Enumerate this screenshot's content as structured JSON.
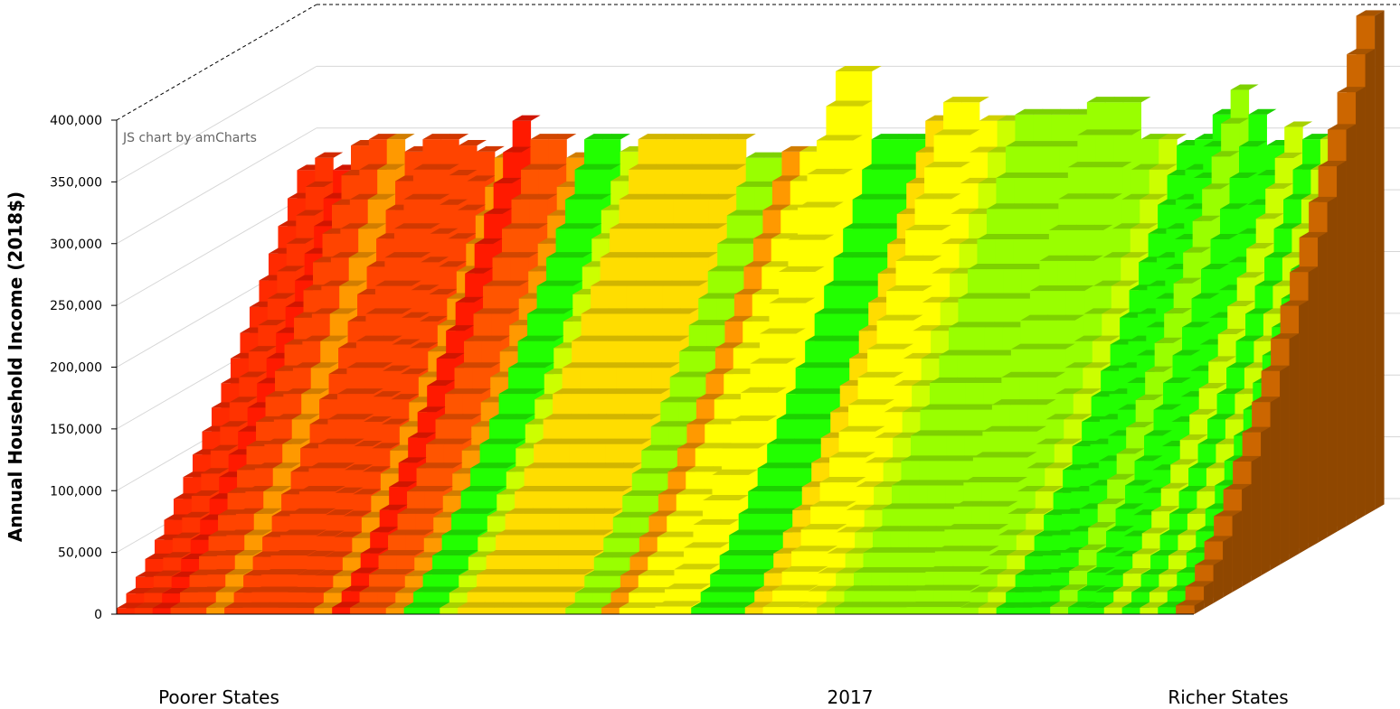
{
  "chart_data": {
    "type": "bar",
    "style": "3d-stacked-columns",
    "ylabel": "Annual Household Income (2018$)",
    "ylim": [
      0,
      400000
    ],
    "yticks": [
      {
        "value": 0,
        "label": "0"
      },
      {
        "value": 50000,
        "label": "50,000"
      },
      {
        "value": 100000,
        "label": "100,000"
      },
      {
        "value": 150000,
        "label": "150,000"
      },
      {
        "value": 200000,
        "label": "200,000"
      },
      {
        "value": 250000,
        "label": "250,000"
      },
      {
        "value": 300000,
        "label": "300,000"
      },
      {
        "value": 350000,
        "label": "350,000"
      },
      {
        "value": 400000,
        "label": "400,000"
      }
    ],
    "x_captions": {
      "left": "Poorer States",
      "center": "2017",
      "right": "Richer States"
    },
    "credit": "JS chart by amCharts",
    "grid": true,
    "color_scale": [
      "#ff1a00",
      "#ff4400",
      "#ff9900",
      "#ffdd00",
      "#ffff00",
      "#ccff00",
      "#99ff00",
      "#22ff00",
      "#cc6600"
    ],
    "groups": 60,
    "percentiles_per_group": 20,
    "group_colors": [
      "#ff2a00",
      "#ff3300",
      "#ff1a00",
      "#ff4400",
      "#ff4400",
      "#ff9900",
      "#ff4400",
      "#ff4400",
      "#ff4400",
      "#ff4400",
      "#ff4400",
      "#ff9900",
      "#ff1a00",
      "#ff5500",
      "#ff5500",
      "#ff9900",
      "#22ff00",
      "#22ff00",
      "#ccff00",
      "#ffdd00",
      "#ffdd00",
      "#ffdd00",
      "#ffdd00",
      "#ffdd00",
      "#ffdd00",
      "#99ff00",
      "#99ff00",
      "#ff9900",
      "#ffff00",
      "#ffff00",
      "#ffff00",
      "#ffff00",
      "#22ff00",
      "#22ff00",
      "#22ff00",
      "#ffdd00",
      "#ffff00",
      "#ffff00",
      "#ffff00",
      "#ccff00",
      "#99ff00",
      "#99ff00",
      "#99ff00",
      "#99ff00",
      "#99ff00",
      "#99ff00",
      "#99ff00",
      "#99ff00",
      "#ccff00",
      "#22ff00",
      "#22ff00",
      "#22ff00",
      "#99ff00",
      "#22ff00",
      "#22ff00",
      "#ccff00",
      "#22ff00",
      "#ccff00",
      "#22ff00",
      "#cc6600"
    ],
    "group_top_values": [
      275000,
      285000,
      275000,
      295000,
      300000,
      300000,
      290000,
      300000,
      300000,
      295000,
      290000,
      285000,
      315000,
      300000,
      300000,
      285000,
      300000,
      300000,
      290000,
      300000,
      300000,
      300000,
      300000,
      300000,
      300000,
      285000,
      285000,
      290000,
      290000,
      290000,
      355000,
      355000,
      300000,
      300000,
      300000,
      315000,
      330000,
      330000,
      315000,
      315000,
      320000,
      320000,
      320000,
      320000,
      330000,
      330000,
      330000,
      300000,
      300000,
      295000,
      300000,
      320000,
      340000,
      320000,
      295000,
      310000,
      300000,
      300000,
      320000,
      400000
    ]
  }
}
